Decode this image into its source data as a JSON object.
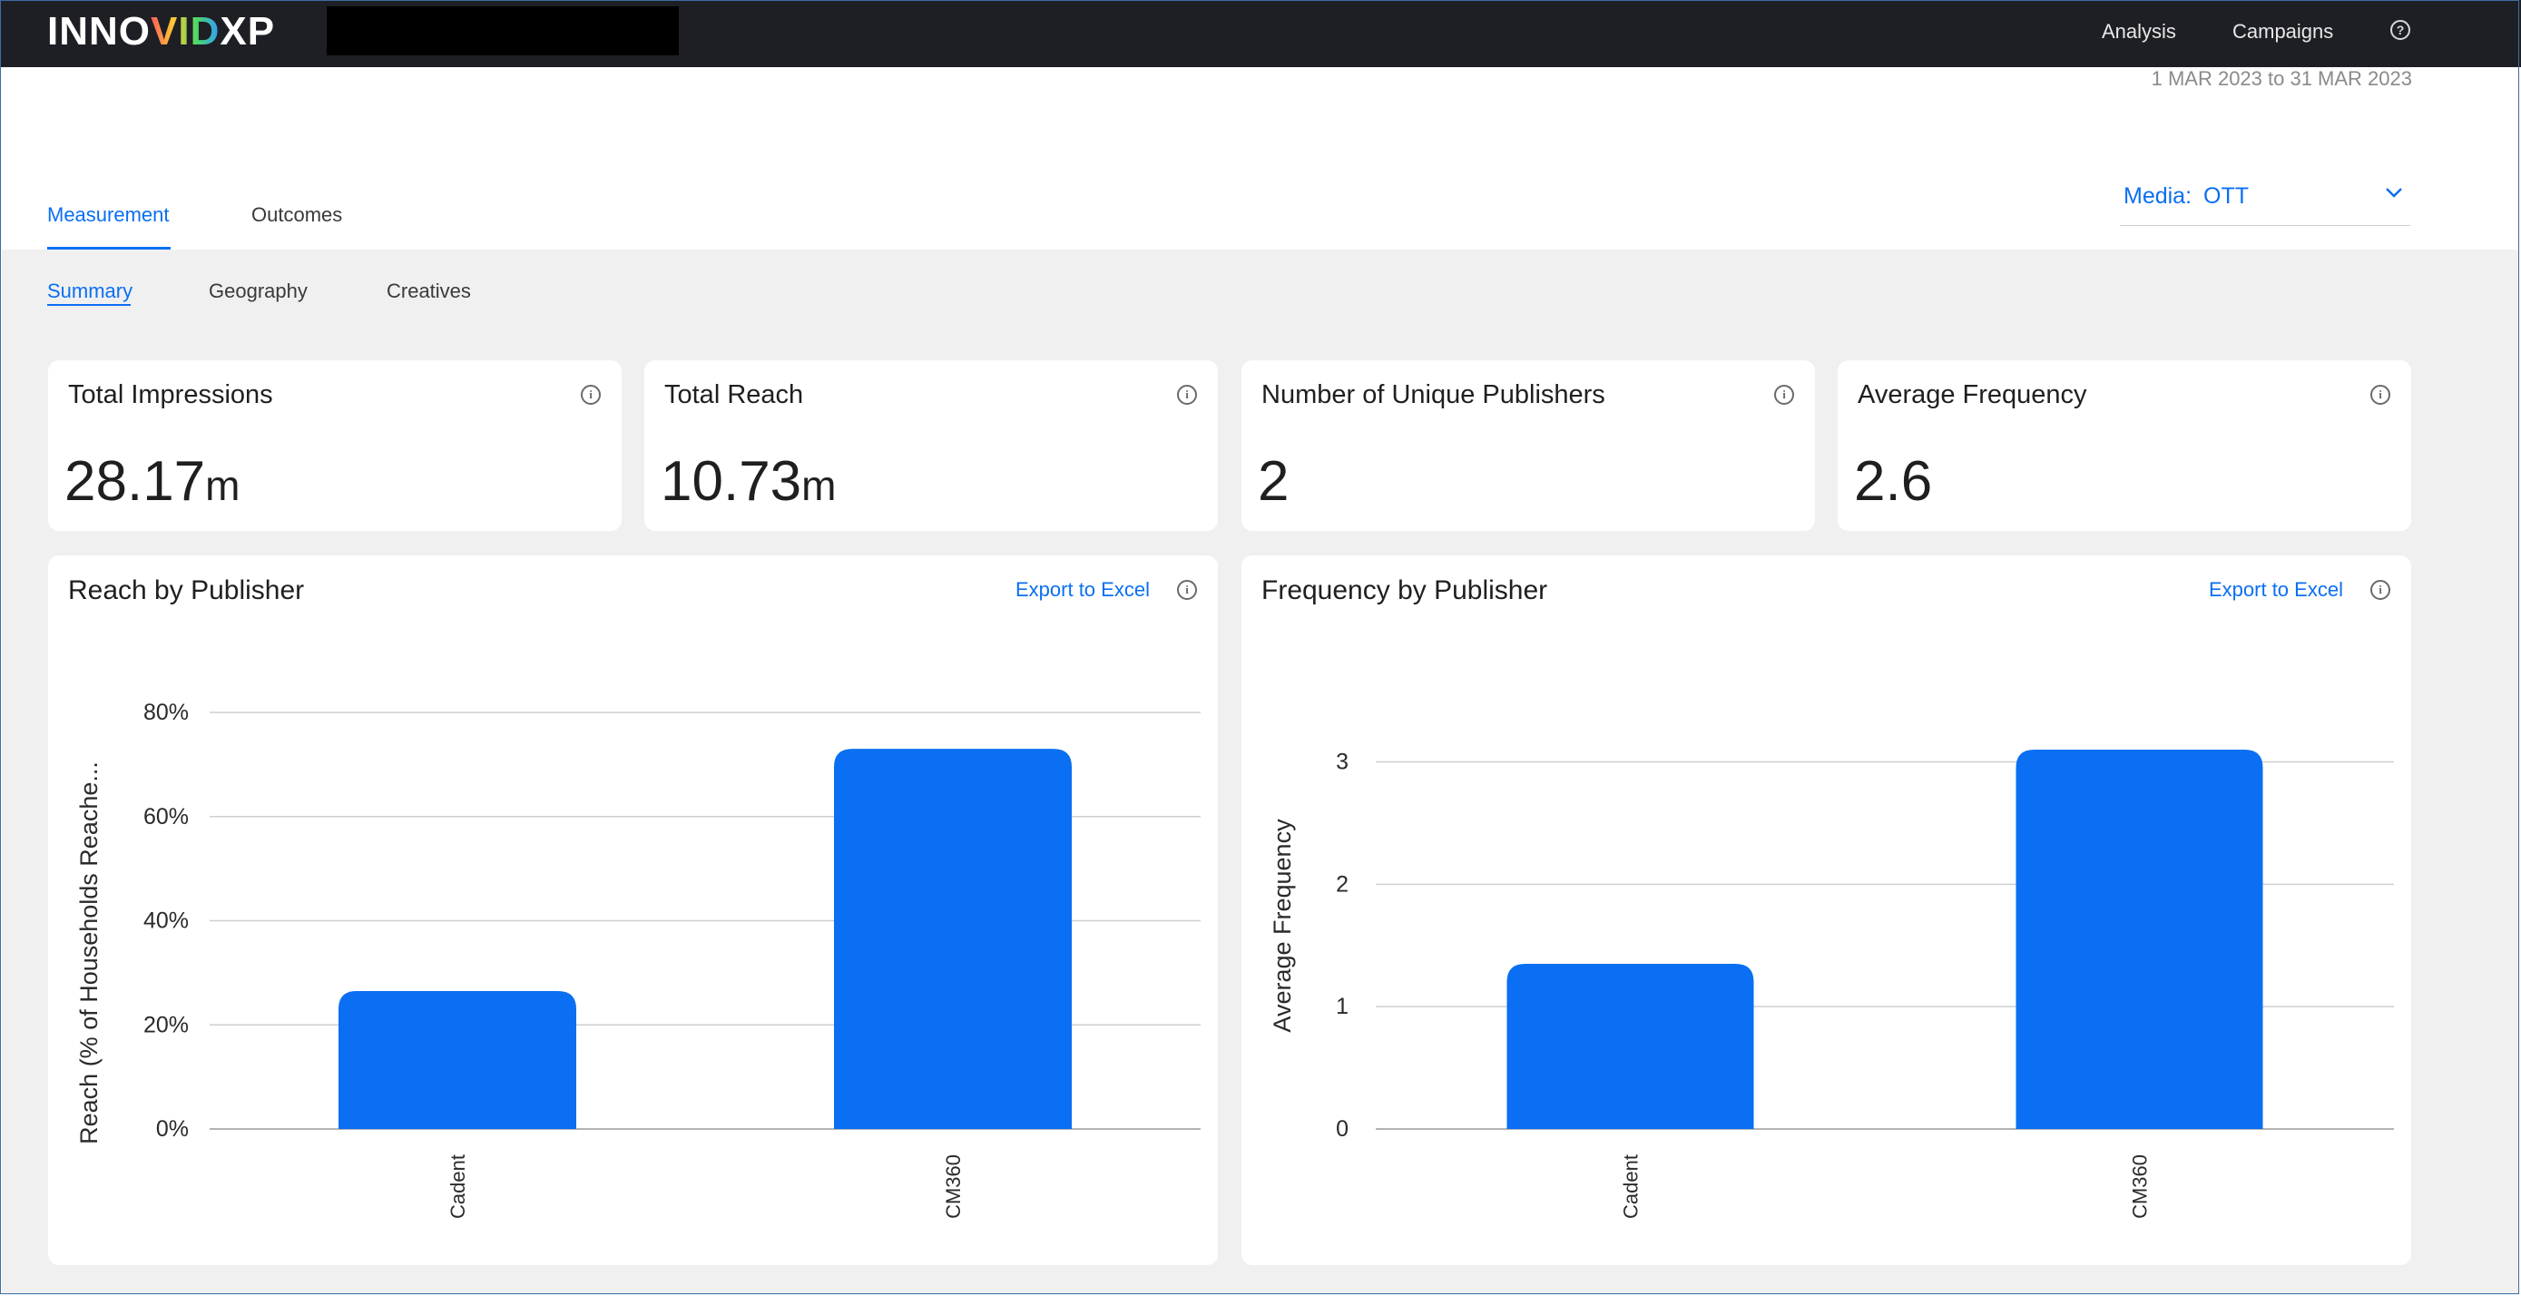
{
  "header": {
    "logo": {
      "prefix": "INNO",
      "mid": "VID",
      "suffix": "XP"
    },
    "nav": [
      "Analysis",
      "Campaigns"
    ],
    "help_icon": "question-circle-icon"
  },
  "date_range": "1 MAR 2023 to 31 MAR 2023",
  "main_tabs": [
    {
      "label": "Measurement",
      "active": true
    },
    {
      "label": "Outcomes",
      "active": false
    }
  ],
  "media_filter": {
    "label": "Media:",
    "value": "OTT"
  },
  "sub_tabs": [
    {
      "label": "Summary",
      "active": true
    },
    {
      "label": "Geography",
      "active": false
    },
    {
      "label": "Creatives",
      "active": false
    }
  ],
  "kpis": [
    {
      "title": "Total Impressions",
      "value": "28.17",
      "unit": "m"
    },
    {
      "title": "Total Reach",
      "value": "10.73",
      "unit": "m"
    },
    {
      "title": "Number of Unique Publishers",
      "value": "2",
      "unit": ""
    },
    {
      "title": "Average Frequency",
      "value": "2.6",
      "unit": ""
    }
  ],
  "export_label": "Export to Excel",
  "accent_color": "#0a6ff2",
  "chart_data": [
    {
      "type": "bar",
      "title": "Reach by Publisher",
      "categories": [
        "Cadent",
        "CM360"
      ],
      "values": [
        26.5,
        73.0
      ],
      "ylabel": "Reach (% of Households Reache...",
      "xlabel": "",
      "ylim": [
        0,
        80
      ],
      "yticks": [
        0,
        20,
        40,
        60,
        80
      ],
      "ytick_labels": [
        "0%",
        "20%",
        "40%",
        "60%",
        "80%"
      ],
      "grid": true,
      "color": "#0a6ff2"
    },
    {
      "type": "bar",
      "title": "Frequency by Publisher",
      "categories": [
        "Cadent",
        "CM360"
      ],
      "values": [
        1.35,
        3.1
      ],
      "ylabel": "Average Frequency",
      "xlabel": "",
      "ylim": [
        0,
        3.1
      ],
      "yticks": [
        0,
        1,
        2,
        3
      ],
      "ytick_labels": [
        "0",
        "1",
        "2",
        "3"
      ],
      "grid": true,
      "color": "#0a6ff2"
    }
  ]
}
